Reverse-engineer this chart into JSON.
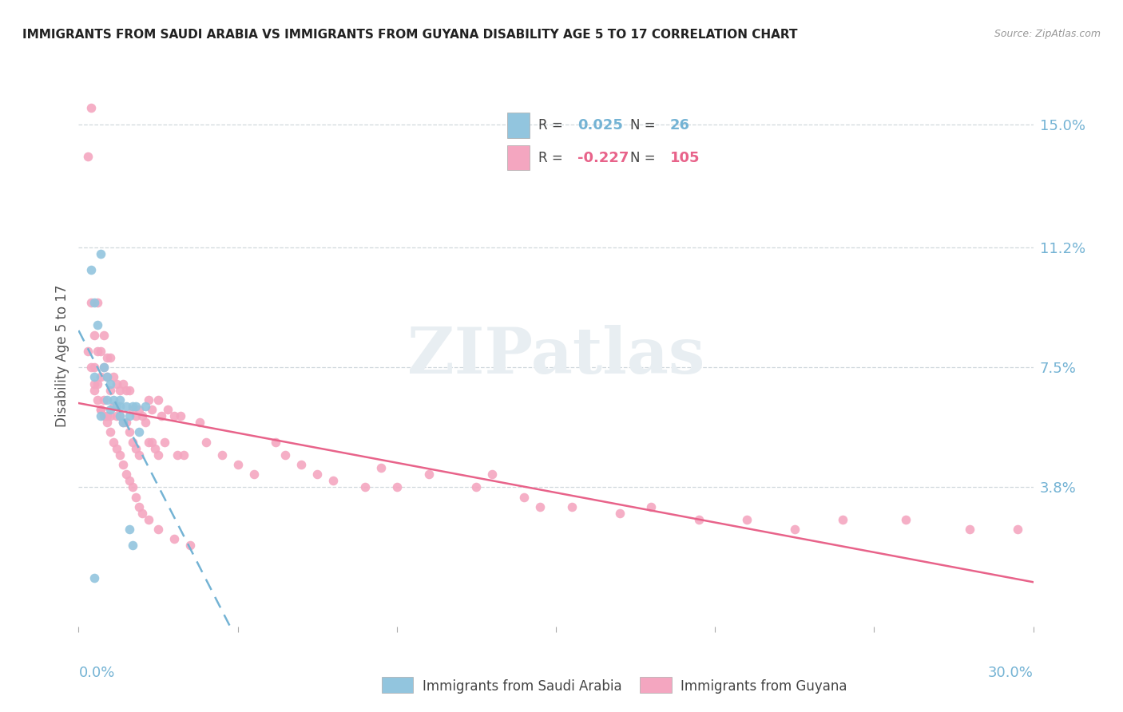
{
  "title": "IMMIGRANTS FROM SAUDI ARABIA VS IMMIGRANTS FROM GUYANA DISABILITY AGE 5 TO 17 CORRELATION CHART",
  "source": "Source: ZipAtlas.com",
  "ylabel": "Disability Age 5 to 17",
  "ytick_labels": [
    "3.8%",
    "7.5%",
    "11.2%",
    "15.0%"
  ],
  "ytick_vals": [
    0.038,
    0.075,
    0.112,
    0.15
  ],
  "xlim": [
    0.0,
    0.3
  ],
  "ylim": [
    -0.005,
    0.162
  ],
  "color_blue": "#92c5de",
  "color_pink": "#f4a6c0",
  "color_line_blue": "#74b3d4",
  "color_line_pink": "#e8638a",
  "watermark_color": "#e8eef2",
  "legend_r1_val": "0.025",
  "legend_n1_val": "26",
  "legend_r2_val": "-0.227",
  "legend_n2_val": "105",
  "saudi_x": [
    0.004,
    0.005,
    0.005,
    0.006,
    0.007,
    0.007,
    0.008,
    0.009,
    0.009,
    0.01,
    0.01,
    0.011,
    0.012,
    0.013,
    0.013,
    0.014,
    0.015,
    0.016,
    0.017,
    0.018,
    0.019,
    0.021,
    0.005,
    0.013,
    0.016,
    0.017
  ],
  "saudi_y": [
    0.105,
    0.095,
    0.072,
    0.088,
    0.11,
    0.06,
    0.075,
    0.072,
    0.065,
    0.07,
    0.062,
    0.065,
    0.063,
    0.065,
    0.06,
    0.058,
    0.063,
    0.06,
    0.063,
    0.063,
    0.055,
    0.063,
    0.01,
    0.063,
    0.025,
    0.02
  ],
  "guyana_x": [
    0.003,
    0.004,
    0.004,
    0.005,
    0.005,
    0.005,
    0.006,
    0.006,
    0.006,
    0.007,
    0.007,
    0.007,
    0.008,
    0.008,
    0.008,
    0.009,
    0.009,
    0.009,
    0.01,
    0.01,
    0.01,
    0.011,
    0.011,
    0.012,
    0.012,
    0.013,
    0.013,
    0.014,
    0.014,
    0.015,
    0.015,
    0.016,
    0.016,
    0.017,
    0.017,
    0.018,
    0.018,
    0.019,
    0.019,
    0.02,
    0.021,
    0.022,
    0.022,
    0.023,
    0.023,
    0.024,
    0.025,
    0.025,
    0.026,
    0.027,
    0.028,
    0.03,
    0.031,
    0.032,
    0.033,
    0.038,
    0.04,
    0.045,
    0.05,
    0.055,
    0.062,
    0.065,
    0.07,
    0.075,
    0.08,
    0.09,
    0.095,
    0.1,
    0.11,
    0.125,
    0.13,
    0.14,
    0.145,
    0.155,
    0.17,
    0.18,
    0.195,
    0.21,
    0.225,
    0.24,
    0.26,
    0.28,
    0.295,
    0.003,
    0.004,
    0.005,
    0.006,
    0.007,
    0.008,
    0.009,
    0.01,
    0.011,
    0.012,
    0.013,
    0.014,
    0.015,
    0.016,
    0.017,
    0.018,
    0.019,
    0.02,
    0.022,
    0.025,
    0.03,
    0.035
  ],
  "guyana_y": [
    0.14,
    0.155,
    0.095,
    0.085,
    0.075,
    0.068,
    0.095,
    0.08,
    0.07,
    0.08,
    0.072,
    0.062,
    0.085,
    0.075,
    0.065,
    0.078,
    0.072,
    0.06,
    0.078,
    0.068,
    0.06,
    0.072,
    0.063,
    0.07,
    0.06,
    0.068,
    0.06,
    0.07,
    0.058,
    0.068,
    0.058,
    0.068,
    0.055,
    0.062,
    0.052,
    0.06,
    0.05,
    0.062,
    0.048,
    0.06,
    0.058,
    0.065,
    0.052,
    0.062,
    0.052,
    0.05,
    0.065,
    0.048,
    0.06,
    0.052,
    0.062,
    0.06,
    0.048,
    0.06,
    0.048,
    0.058,
    0.052,
    0.048,
    0.045,
    0.042,
    0.052,
    0.048,
    0.045,
    0.042,
    0.04,
    0.038,
    0.044,
    0.038,
    0.042,
    0.038,
    0.042,
    0.035,
    0.032,
    0.032,
    0.03,
    0.032,
    0.028,
    0.028,
    0.025,
    0.028,
    0.028,
    0.025,
    0.025,
    0.08,
    0.075,
    0.07,
    0.065,
    0.062,
    0.06,
    0.058,
    0.055,
    0.052,
    0.05,
    0.048,
    0.045,
    0.042,
    0.04,
    0.038,
    0.035,
    0.032,
    0.03,
    0.028,
    0.025,
    0.022,
    0.02
  ]
}
